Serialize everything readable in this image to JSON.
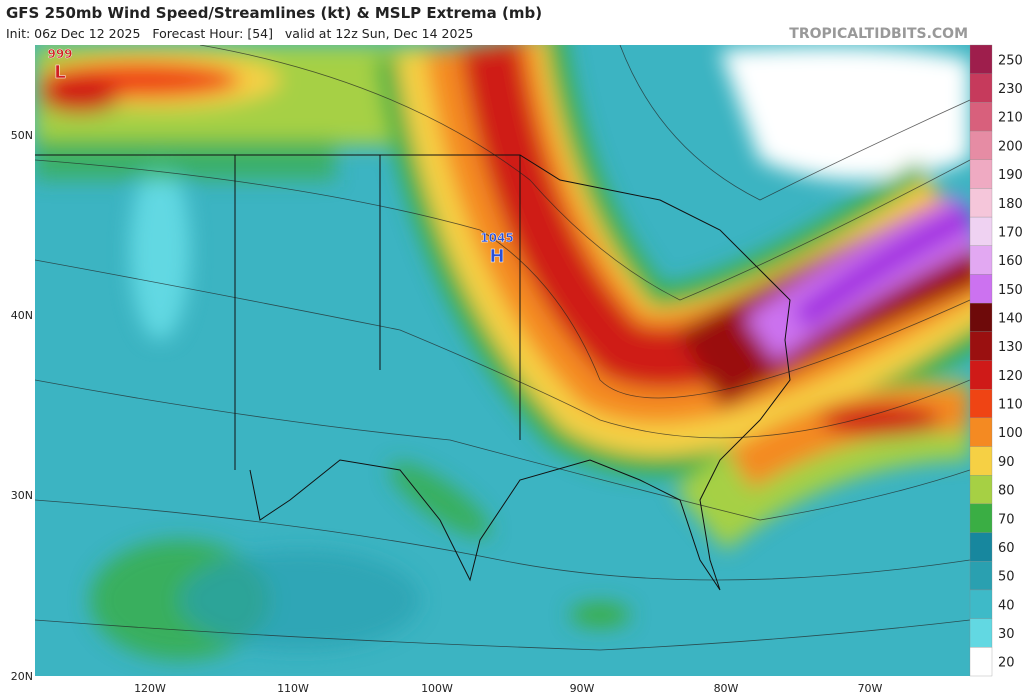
{
  "header": {
    "title": "GFS 250mb Wind Speed/Streamlines (kt) & MSLP Extrema (mb)",
    "subtitle": "Init: 06z Dec 12 2025   Forecast Hour: [54]   valid at 12z Sun, Dec 14 2025",
    "source": "TROPICALTIDBITS.COM"
  },
  "map": {
    "lat_labels": [
      "50N",
      "40N",
      "30N",
      "20N"
    ],
    "lon_labels": [
      "120W",
      "110W",
      "100W",
      "90W",
      "80W",
      "70W"
    ],
    "extrema": [
      {
        "type": "H",
        "value": 1045
      },
      {
        "type": "L",
        "value": 999
      }
    ]
  },
  "colorbar": {
    "levels": [
      250,
      230,
      210,
      200,
      190,
      180,
      170,
      160,
      150,
      140,
      130,
      120,
      110,
      100,
      90,
      80,
      70,
      60,
      50,
      40,
      30,
      20
    ],
    "colors": [
      "#9e1e4c",
      "#c63a5c",
      "#d8607c",
      "#e68ca4",
      "#efaac2",
      "#f5c6da",
      "#efd2f2",
      "#e2a8f2",
      "#cc72f0",
      "#6e0a0a",
      "#9a1010",
      "#cf1a18",
      "#ef4414",
      "#f48a22",
      "#f6d044",
      "#a6d044",
      "#3aae44",
      "#17879e",
      "#2aa0b0",
      "#3ebac8",
      "#62d8e2",
      "#ffffff"
    ]
  }
}
